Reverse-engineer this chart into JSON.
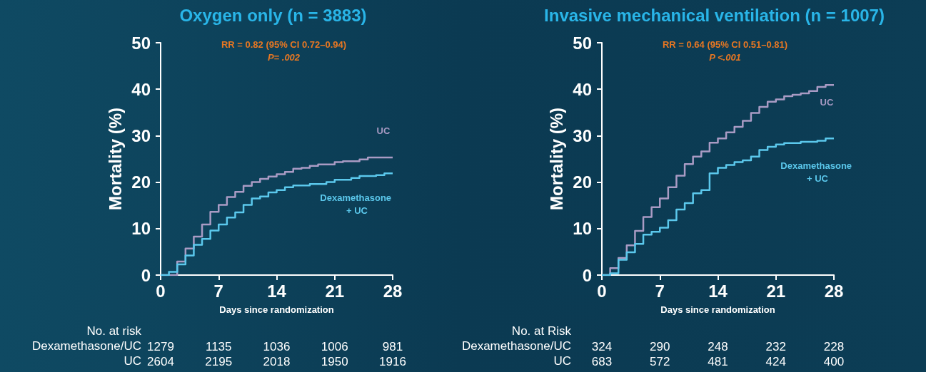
{
  "chart_data": [
    {
      "type": "step",
      "title": "Oxygen only (n = 3883)",
      "xlabel": "Days since randomization",
      "ylabel": "Mortality (%)",
      "xlim": [
        0,
        28
      ],
      "xticks": [
        0,
        7,
        14,
        21,
        28
      ],
      "ylim": [
        0,
        50
      ],
      "yticks": [
        0,
        10,
        20,
        30,
        40,
        50
      ],
      "marker": "none",
      "annotations": [
        "RR = 0.82 (95% CI 0.72–0.94)",
        "P= .002",
        "No. at risk",
        "Dexamethasone/UC",
        "UC",
        "1279",
        "1135",
        "1036",
        "1006",
        "981",
        "2604",
        "2195",
        "2018",
        "1950",
        "1916"
      ],
      "series": [
        {
          "name": "UC",
          "color": "#a99bc4",
          "x": [
            0,
            1,
            2,
            3,
            4,
            5,
            6,
            7,
            8,
            9,
            10,
            11,
            12,
            13,
            14,
            15,
            16,
            17,
            18,
            19,
            21,
            22,
            24,
            25,
            28
          ],
          "values": [
            0,
            0,
            2.9,
            5.7,
            8.3,
            10.9,
            13.6,
            15.1,
            16.8,
            17.9,
            19.2,
            20.0,
            20.7,
            21.2,
            21.7,
            22.2,
            22.9,
            23.1,
            23.5,
            23.8,
            24.3,
            24.5,
            24.9,
            25.3,
            25.4
          ]
        },
        {
          "name": "Dexamethasone + UC",
          "color": "#5bc8ec",
          "x": [
            0,
            1,
            2,
            3,
            4,
            5,
            6,
            7,
            8,
            9,
            10,
            11,
            12,
            13,
            14,
            15,
            16,
            18,
            20,
            21,
            23,
            24,
            26,
            27,
            28
          ],
          "values": [
            0,
            0.7,
            2.3,
            4.2,
            6.5,
            7.8,
            9.6,
            10.9,
            12.4,
            13.5,
            15.1,
            16.5,
            16.9,
            17.8,
            18.3,
            18.9,
            19.3,
            19.6,
            20.0,
            20.5,
            20.9,
            21.3,
            21.5,
            21.9,
            21.9
          ]
        }
      ]
    },
    {
      "type": "step",
      "title": "Invasive mechanical ventilation (n = 1007)",
      "xlabel": "Days since randomization",
      "ylabel": "Mortality (%)",
      "xlim": [
        0,
        28
      ],
      "xticks": [
        0,
        7,
        14,
        21,
        28
      ],
      "ylim": [
        0,
        50
      ],
      "yticks": [
        0,
        10,
        20,
        30,
        40,
        50
      ],
      "marker": "none",
      "annotations": [
        "RR = 0.64 (95% CI 0.51–0.81)",
        "P <.001",
        "No. at Risk",
        "Dexamethasone/UC",
        "UC",
        "324",
        "290",
        "248",
        "232",
        "228",
        "683",
        "572",
        "481",
        "424",
        "400"
      ],
      "series": [
        {
          "name": "UC",
          "color": "#a99bc4",
          "x": [
            0,
            1,
            2,
            3,
            4,
            5,
            6,
            7,
            8,
            9,
            10,
            11,
            12,
            13,
            14,
            15,
            16,
            17,
            18,
            19,
            20,
            21,
            22,
            23,
            24,
            25,
            26,
            27,
            28
          ],
          "values": [
            0,
            1.5,
            3.7,
            6.4,
            9.5,
            12.5,
            14.6,
            16.5,
            18.9,
            21.4,
            23.9,
            25.5,
            26.6,
            28.5,
            29.4,
            30.7,
            31.9,
            33.2,
            34.9,
            36.2,
            37.3,
            37.8,
            38.5,
            38.8,
            39.1,
            39.6,
            40.5,
            40.9,
            40.9
          ]
        },
        {
          "name": "Dexamethasone + UC",
          "color": "#5bc8ec",
          "x": [
            0,
            1,
            2,
            3,
            4,
            5,
            6,
            7,
            8,
            9,
            10,
            11,
            12,
            13,
            14,
            15,
            16,
            17,
            18,
            19,
            20,
            21,
            22,
            24,
            26,
            27,
            28
          ],
          "values": [
            0,
            0.4,
            3.3,
            4.9,
            6.7,
            8.7,
            9.3,
            10.2,
            11.8,
            14.1,
            15.5,
            17.6,
            18.3,
            21.9,
            23.1,
            23.7,
            24.3,
            24.7,
            25.5,
            26.9,
            27.6,
            28.1,
            28.4,
            28.7,
            28.9,
            29.4,
            29.4
          ]
        }
      ]
    }
  ]
}
